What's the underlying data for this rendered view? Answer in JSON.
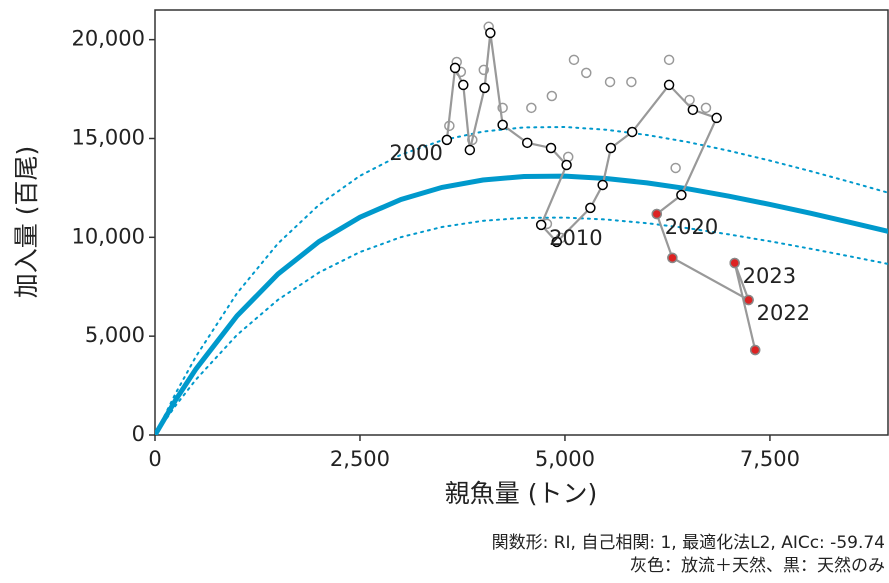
{
  "chart_data": {
    "type": "scatter",
    "x_label": "親魚量 (トン)",
    "y_label": "加入量 (百尾)",
    "notes": [
      "関数形: RI, 自己相関: 1, 最適化法L2, AICc: -59.74",
      "灰色：放流＋天然、黒：天然のみ"
    ],
    "xlim": [
      0,
      8940
    ],
    "ylim": [
      0,
      21500
    ],
    "xticks": [
      0,
      {
        "value": 2500,
        "label": "2,500"
      },
      {
        "value": 5000,
        "label": "5,000"
      },
      {
        "value": 7500,
        "label": "7,500"
      }
    ],
    "yticks": [
      0,
      {
        "value": 5000,
        "label": "5,000"
      },
      {
        "value": 10000,
        "label": "10,000"
      },
      {
        "value": 15000,
        "label": "15,000"
      },
      {
        "value": 20000,
        "label": "20,000"
      }
    ],
    "curve_x": [
      0,
      250,
      500,
      1000,
      1500,
      2000,
      2500,
      3000,
      3500,
      4000,
      4500,
      5000,
      5500,
      6000,
      6500,
      7000,
      7500,
      8000,
      8500,
      9000
    ],
    "curves": [
      {
        "color": "#0099cc",
        "width": 5,
        "dotted": false,
        "values": [
          0,
          1761,
          3343,
          6025,
          8143,
          9784,
          11019,
          11916,
          12526,
          12899,
          13076,
          13093,
          12978,
          12755,
          12453,
          12082,
          11664,
          11213,
          10735,
          10244
        ]
      },
      {
        "color": "#0099cc",
        "width": 2,
        "dotted": true,
        "values": [
          0,
          2096,
          3978,
          7170,
          9690,
          11643,
          13113,
          14180,
          14906,
          15350,
          15560,
          15581,
          15444,
          15178,
          14819,
          14378,
          13880,
          13343,
          12775,
          12190
        ]
      },
      {
        "color": "#0099cc",
        "width": 2,
        "dotted": true,
        "values": [
          0,
          1479,
          2808,
          5061,
          6840,
          8219,
          9256,
          10009,
          10522,
          10835,
          10984,
          10998,
          10902,
          10714,
          10461,
          10149,
          9798,
          9419,
          9017,
          8605
        ]
      }
    ],
    "series": [
      {
        "stroke": "#999999",
        "fill": "#ffffff",
        "line": false,
        "x": [
          3590,
          3680,
          3730,
          3870,
          4010,
          4070,
          4240,
          4590,
          4840,
          5040,
          4780,
          4950,
          5110,
          5260,
          5550,
          5810,
          6270,
          6520,
          6720,
          6350,
          6120,
          6310,
          7240,
          7070,
          7320
        ],
        "values": [
          15640,
          18870,
          18370,
          14930,
          18470,
          20650,
          16550,
          16550,
          17150,
          14070,
          10680,
          9970,
          18980,
          18320,
          17860,
          17860,
          18980,
          16950,
          16550,
          13510,
          11180,
          8960,
          6830,
          8700,
          4300
        ]
      },
      {
        "stroke": "#000000",
        "fill": "#ffffff",
        "line": true,
        "line_color": "#999999",
        "x": [
          3560,
          3660,
          3760,
          3840,
          4020,
          4090,
          4240,
          4540,
          4830,
          5020,
          4710,
          4900,
          5310,
          5460,
          5560,
          5820,
          6270,
          6560,
          6850,
          6420,
          6120,
          6310,
          7240,
          7070,
          7320
        ],
        "values": [
          14930,
          18570,
          17710,
          14420,
          17560,
          20340,
          15690,
          14780,
          14520,
          13660,
          10630,
          9770,
          11490,
          12650,
          14520,
          15330,
          17710,
          16450,
          16040,
          12140,
          11180,
          8960,
          6830,
          8700,
          4300
        ],
        "point_fill": [
          null,
          null,
          null,
          null,
          null,
          null,
          null,
          null,
          null,
          null,
          null,
          null,
          null,
          null,
          null,
          null,
          null,
          null,
          null,
          null,
          "#dd2222",
          "#dd2222",
          "#dd2222",
          "#dd2222",
          "#dd2222"
        ],
        "labels": [
          2000,
          null,
          null,
          null,
          null,
          null,
          null,
          null,
          null,
          null,
          2010,
          null,
          null,
          null,
          null,
          null,
          null,
          null,
          null,
          null,
          2020,
          null,
          2022,
          2023,
          null
        ]
      }
    ]
  }
}
